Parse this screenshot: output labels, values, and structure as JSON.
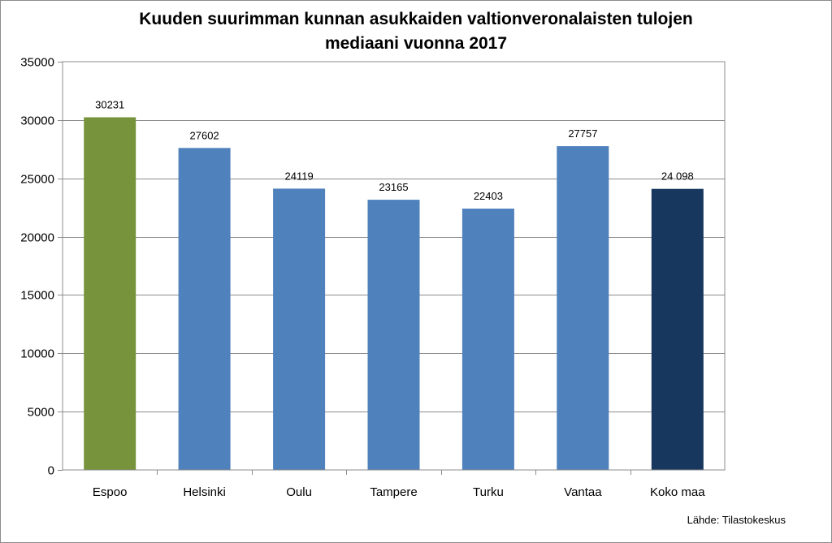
{
  "chart_data": {
    "type": "bar",
    "title_lines": [
      "Kuuden suurimman kunnan asukkaiden valtionveronalaisten tulojen",
      "mediaani vuonna 2017"
    ],
    "categories": [
      "Espoo",
      "Helsinki",
      "Oulu",
      "Tampere",
      "Turku",
      "Vantaa",
      "Koko maa"
    ],
    "values": [
      30231,
      27602,
      24119,
      23165,
      22403,
      27757,
      24098
    ],
    "data_labels": [
      "30231",
      "27602",
      "24119",
      "23165",
      "22403",
      "27757",
      "24 098"
    ],
    "bar_colors": [
      "#77933c",
      "#4f81bd",
      "#4f81bd",
      "#4f81bd",
      "#4f81bd",
      "#4f81bd",
      "#17375e"
    ],
    "yticks": [
      0,
      5000,
      10000,
      15000,
      20000,
      25000,
      30000,
      35000
    ],
    "ylim": [
      0,
      35000
    ],
    "grid": true,
    "legend": "none",
    "source": "Lähde: Tilastokeskus"
  }
}
